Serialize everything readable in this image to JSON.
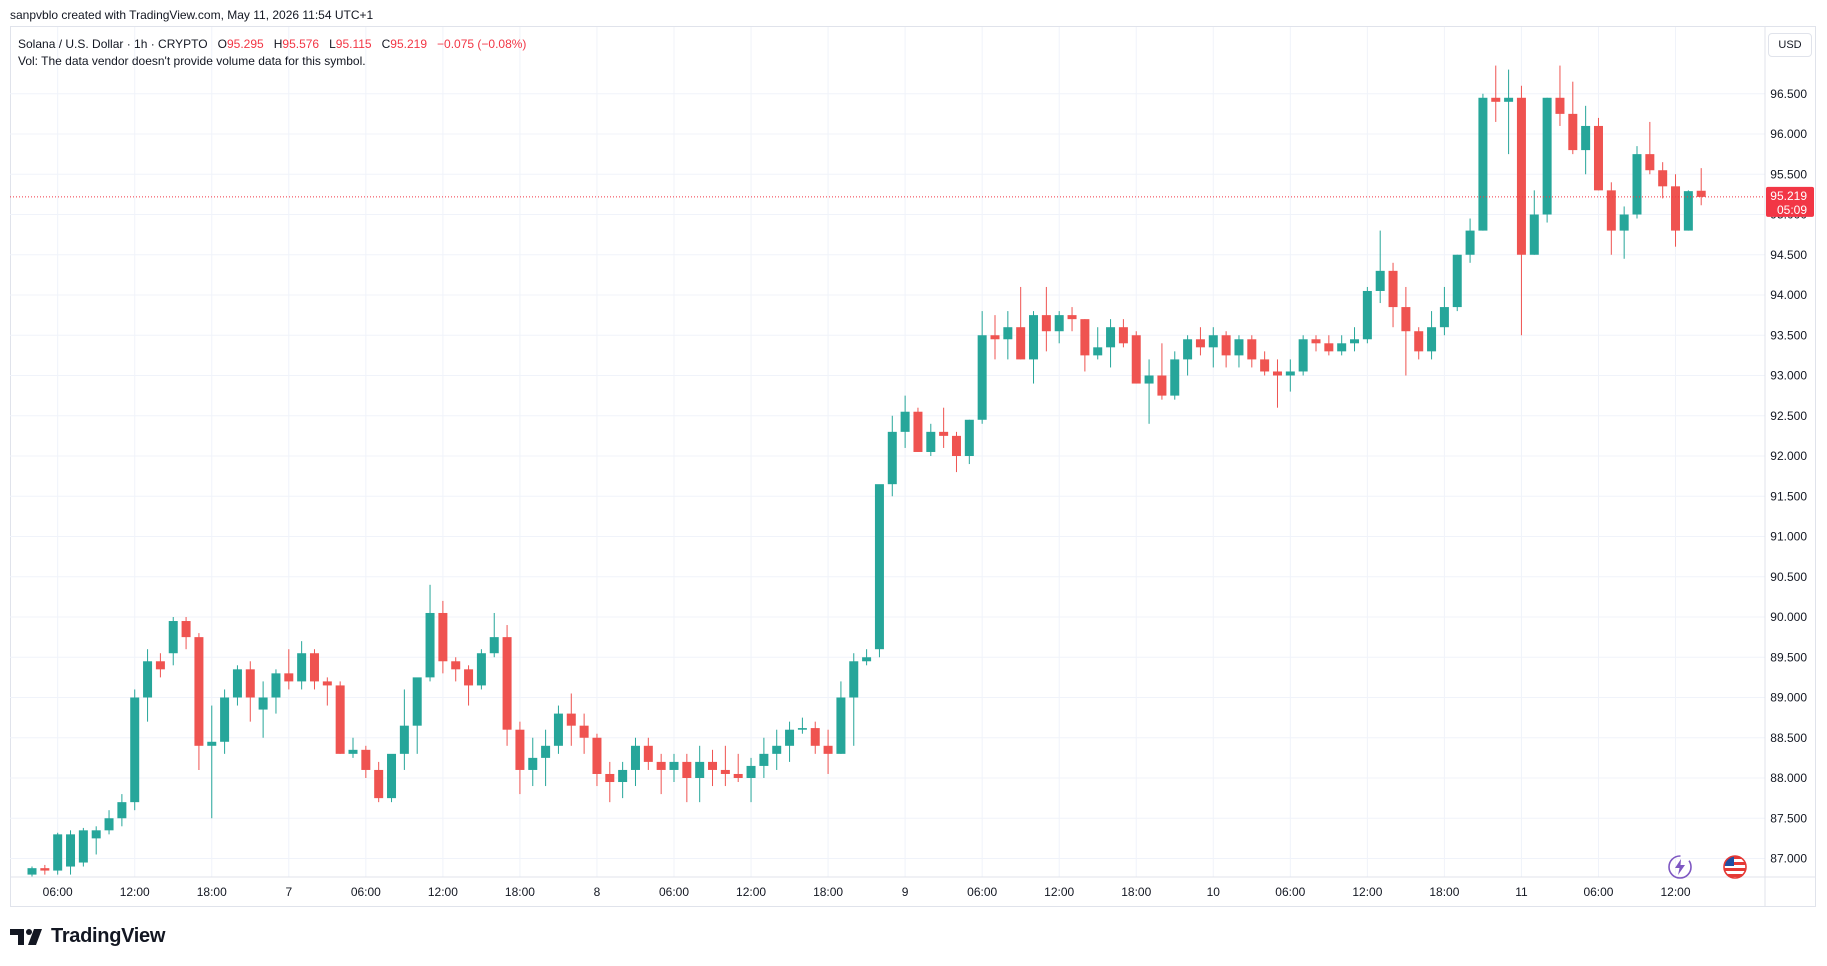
{
  "header": {
    "credit": "sanpvblo created with TradingView.com, May 11, 2026 11:54 UTC+1"
  },
  "legend": {
    "symbol": "Solana / U.S. Dollar · 1h · CRYPTO",
    "o_label": "O",
    "o_value": "95.295",
    "h_label": "H",
    "h_value": "95.576",
    "l_label": "L",
    "l_value": "95.115",
    "c_label": "C",
    "c_value": "95.219",
    "change": "−0.075 (−0.08%)",
    "vol_note": "Vol: The data vendor doesn't provide volume data for this symbol."
  },
  "currency_button": "USD",
  "price_tag": {
    "price": "95.219",
    "countdown": "05:09"
  },
  "brand": "TradingView",
  "icons": {
    "logo": "tradingview-logo-icon",
    "bolt": "lightning-icon",
    "flag": "us-flag-icon"
  },
  "colors": {
    "up": "#26a69a",
    "down": "#ef5350",
    "tag": "#f23645",
    "grid": "#f0f3fa"
  },
  "chart_data": {
    "type": "candlestick",
    "timeframe": "1h",
    "y_ticks": [
      "87.000",
      "87.500",
      "88.000",
      "88.500",
      "89.000",
      "89.500",
      "90.000",
      "90.500",
      "91.000",
      "91.500",
      "92.000",
      "92.500",
      "93.000",
      "93.500",
      "94.000",
      "94.500",
      "95.000",
      "95.500",
      "96.000",
      "96.500"
    ],
    "x_ticks": [
      {
        "label": "06:00",
        "index": 2
      },
      {
        "label": "12:00",
        "index": 8
      },
      {
        "label": "18:00",
        "index": 14
      },
      {
        "label": "7",
        "index": 20
      },
      {
        "label": "06:00",
        "index": 26
      },
      {
        "label": "12:00",
        "index": 32
      },
      {
        "label": "18:00",
        "index": 38
      },
      {
        "label": "8",
        "index": 44
      },
      {
        "label": "06:00",
        "index": 50
      },
      {
        "label": "12:00",
        "index": 56
      },
      {
        "label": "18:00",
        "index": 62
      },
      {
        "label": "9",
        "index": 68
      },
      {
        "label": "06:00",
        "index": 74
      },
      {
        "label": "12:00",
        "index": 80
      },
      {
        "label": "18:00",
        "index": 86
      },
      {
        "label": "10",
        "index": 92
      },
      {
        "label": "06:00",
        "index": 98
      },
      {
        "label": "12:00",
        "index": 104
      },
      {
        "label": "18:00",
        "index": 110
      },
      {
        "label": "11",
        "index": 116
      },
      {
        "label": "06:00",
        "index": 122
      },
      {
        "label": "12:00",
        "index": 128
      }
    ],
    "ylim": [
      86.8,
      96.9
    ],
    "last_price": 95.219,
    "candles": [
      [
        86.8,
        86.9,
        86.72,
        86.88
      ],
      [
        86.88,
        86.92,
        86.8,
        86.85
      ],
      [
        86.85,
        87.32,
        86.8,
        87.3
      ],
      [
        86.9,
        87.35,
        86.8,
        87.3
      ],
      [
        86.95,
        87.38,
        86.9,
        87.35
      ],
      [
        87.25,
        87.4,
        87.05,
        87.35
      ],
      [
        87.35,
        87.6,
        87.3,
        87.5
      ],
      [
        87.5,
        87.8,
        87.4,
        87.7
      ],
      [
        87.7,
        89.1,
        87.6,
        89.0
      ],
      [
        89.0,
        89.6,
        88.7,
        89.45
      ],
      [
        89.45,
        89.55,
        89.25,
        89.35
      ],
      [
        89.55,
        90.0,
        89.4,
        89.95
      ],
      [
        89.95,
        90.0,
        89.6,
        89.75
      ],
      [
        89.75,
        89.8,
        88.1,
        88.4
      ],
      [
        88.4,
        88.9,
        87.5,
        88.45
      ],
      [
        88.45,
        89.1,
        88.3,
        89.0
      ],
      [
        89.0,
        89.4,
        88.9,
        89.35
      ],
      [
        89.35,
        89.45,
        88.7,
        89.0
      ],
      [
        88.85,
        89.2,
        88.5,
        89.0
      ],
      [
        89.0,
        89.35,
        88.8,
        89.3
      ],
      [
        89.3,
        89.6,
        89.1,
        89.2
      ],
      [
        89.2,
        89.7,
        89.1,
        89.55
      ],
      [
        89.55,
        89.6,
        89.1,
        89.2
      ],
      [
        89.2,
        89.25,
        88.9,
        89.15
      ],
      [
        89.15,
        89.2,
        88.3,
        88.3
      ],
      [
        88.3,
        88.5,
        88.25,
        88.35
      ],
      [
        88.35,
        88.4,
        88.0,
        88.1
      ],
      [
        88.1,
        88.2,
        87.7,
        87.75
      ],
      [
        87.75,
        88.25,
        87.7,
        88.3
      ],
      [
        88.3,
        89.1,
        88.1,
        88.65
      ],
      [
        88.65,
        89.2,
        88.3,
        89.25
      ],
      [
        89.25,
        90.4,
        89.2,
        90.05
      ],
      [
        90.05,
        90.2,
        89.3,
        89.45
      ],
      [
        89.45,
        89.5,
        89.2,
        89.35
      ],
      [
        89.35,
        89.4,
        88.9,
        89.15
      ],
      [
        89.15,
        89.6,
        89.1,
        89.55
      ],
      [
        89.55,
        90.05,
        89.5,
        89.75
      ],
      [
        89.75,
        89.9,
        88.4,
        88.6
      ],
      [
        88.6,
        88.7,
        87.8,
        88.1
      ],
      [
        88.1,
        88.5,
        87.9,
        88.25
      ],
      [
        88.25,
        88.6,
        87.9,
        88.4
      ],
      [
        88.4,
        88.9,
        88.3,
        88.8
      ],
      [
        88.8,
        89.05,
        88.4,
        88.65
      ],
      [
        88.65,
        88.8,
        88.3,
        88.5
      ],
      [
        88.5,
        88.55,
        87.9,
        88.05
      ],
      [
        88.05,
        88.2,
        87.7,
        87.95
      ],
      [
        87.95,
        88.2,
        87.75,
        88.1
      ],
      [
        88.1,
        88.5,
        87.9,
        88.4
      ],
      [
        88.4,
        88.5,
        88.1,
        88.2
      ],
      [
        88.2,
        88.3,
        87.8,
        88.1
      ],
      [
        88.1,
        88.3,
        87.95,
        88.2
      ],
      [
        88.2,
        88.3,
        87.7,
        88.0
      ],
      [
        88.0,
        88.4,
        87.7,
        88.2
      ],
      [
        88.2,
        88.35,
        87.9,
        88.1
      ],
      [
        88.1,
        88.4,
        87.9,
        88.05
      ],
      [
        88.05,
        88.3,
        87.95,
        88.0
      ],
      [
        88.0,
        88.25,
        87.7,
        88.15
      ],
      [
        88.15,
        88.5,
        88.0,
        88.3
      ],
      [
        88.3,
        88.6,
        88.1,
        88.4
      ],
      [
        88.4,
        88.7,
        88.2,
        88.6
      ],
      [
        88.6,
        88.75,
        88.55,
        88.62
      ],
      [
        88.62,
        88.7,
        88.3,
        88.4
      ],
      [
        88.4,
        88.6,
        88.05,
        88.3
      ],
      [
        88.3,
        89.2,
        88.3,
        89.0
      ],
      [
        89.0,
        89.55,
        88.4,
        89.45
      ],
      [
        89.45,
        89.6,
        89.4,
        89.5
      ],
      [
        89.6,
        91.6,
        89.5,
        91.65
      ],
      [
        91.65,
        92.5,
        91.5,
        92.3
      ],
      [
        92.3,
        92.75,
        92.1,
        92.55
      ],
      [
        92.55,
        92.6,
        92.05,
        92.05
      ],
      [
        92.05,
        92.4,
        92.0,
        92.3
      ],
      [
        92.3,
        92.6,
        92.1,
        92.25
      ],
      [
        92.25,
        92.3,
        91.8,
        92.0
      ],
      [
        92.0,
        92.45,
        91.9,
        92.45
      ],
      [
        92.45,
        93.8,
        92.4,
        93.5
      ],
      [
        93.5,
        93.75,
        93.2,
        93.45
      ],
      [
        93.45,
        93.8,
        93.2,
        93.6
      ],
      [
        93.6,
        94.1,
        93.2,
        93.2
      ],
      [
        93.2,
        93.8,
        92.9,
        93.75
      ],
      [
        93.75,
        94.1,
        93.3,
        93.55
      ],
      [
        93.55,
        93.8,
        93.4,
        93.75
      ],
      [
        93.75,
        93.85,
        93.55,
        93.7
      ],
      [
        93.7,
        93.7,
        93.05,
        93.25
      ],
      [
        93.25,
        93.6,
        93.2,
        93.35
      ],
      [
        93.35,
        93.7,
        93.1,
        93.6
      ],
      [
        93.6,
        93.7,
        93.35,
        93.4
      ],
      [
        93.5,
        93.55,
        92.9,
        92.9
      ],
      [
        92.9,
        93.2,
        92.4,
        93.0
      ],
      [
        93.0,
        93.4,
        92.7,
        92.75
      ],
      [
        92.75,
        93.3,
        92.7,
        93.2
      ],
      [
        93.2,
        93.5,
        93.0,
        93.45
      ],
      [
        93.45,
        93.6,
        93.25,
        93.35
      ],
      [
        93.35,
        93.6,
        93.1,
        93.5
      ],
      [
        93.5,
        93.55,
        93.1,
        93.25
      ],
      [
        93.25,
        93.5,
        93.1,
        93.45
      ],
      [
        93.45,
        93.5,
        93.1,
        93.2
      ],
      [
        93.2,
        93.3,
        93.0,
        93.05
      ],
      [
        93.05,
        93.2,
        92.6,
        93.0
      ],
      [
        93.0,
        93.2,
        92.8,
        93.05
      ],
      [
        93.05,
        93.5,
        93.0,
        93.45
      ],
      [
        93.45,
        93.5,
        93.3,
        93.4
      ],
      [
        93.4,
        93.5,
        93.25,
        93.3
      ],
      [
        93.3,
        93.5,
        93.25,
        93.4
      ],
      [
        93.4,
        93.6,
        93.3,
        93.45
      ],
      [
        93.45,
        94.1,
        93.4,
        94.05
      ],
      [
        94.05,
        94.8,
        93.9,
        94.3
      ],
      [
        94.3,
        94.4,
        93.6,
        93.85
      ],
      [
        93.85,
        94.1,
        93.0,
        93.55
      ],
      [
        93.55,
        93.6,
        93.2,
        93.3
      ],
      [
        93.3,
        93.8,
        93.2,
        93.6
      ],
      [
        93.6,
        94.1,
        93.5,
        93.85
      ],
      [
        93.85,
        94.5,
        93.8,
        94.5
      ],
      [
        94.5,
        94.95,
        94.4,
        94.8
      ],
      [
        94.8,
        96.5,
        94.8,
        96.45
      ],
      [
        96.45,
        96.85,
        96.15,
        96.4
      ],
      [
        96.4,
        96.8,
        95.75,
        96.45
      ],
      [
        96.45,
        96.6,
        93.5,
        94.5
      ],
      [
        94.5,
        95.3,
        94.5,
        95.0
      ],
      [
        95.0,
        96.45,
        94.9,
        96.45
      ],
      [
        96.45,
        96.85,
        96.1,
        96.25
      ],
      [
        96.25,
        96.65,
        95.75,
        95.8
      ],
      [
        95.8,
        96.35,
        95.5,
        96.1
      ],
      [
        96.1,
        96.2,
        95.3,
        95.3
      ],
      [
        95.3,
        95.4,
        94.5,
        94.8
      ],
      [
        94.8,
        95.1,
        94.45,
        95.0
      ],
      [
        95.0,
        95.85,
        94.95,
        95.75
      ],
      [
        95.75,
        96.15,
        95.5,
        95.55
      ],
      [
        95.55,
        95.65,
        95.2,
        95.35
      ],
      [
        95.35,
        95.5,
        94.6,
        94.8
      ],
      [
        94.8,
        95.3,
        94.8,
        95.29
      ],
      [
        95.295,
        95.576,
        95.115,
        95.219
      ]
    ]
  }
}
